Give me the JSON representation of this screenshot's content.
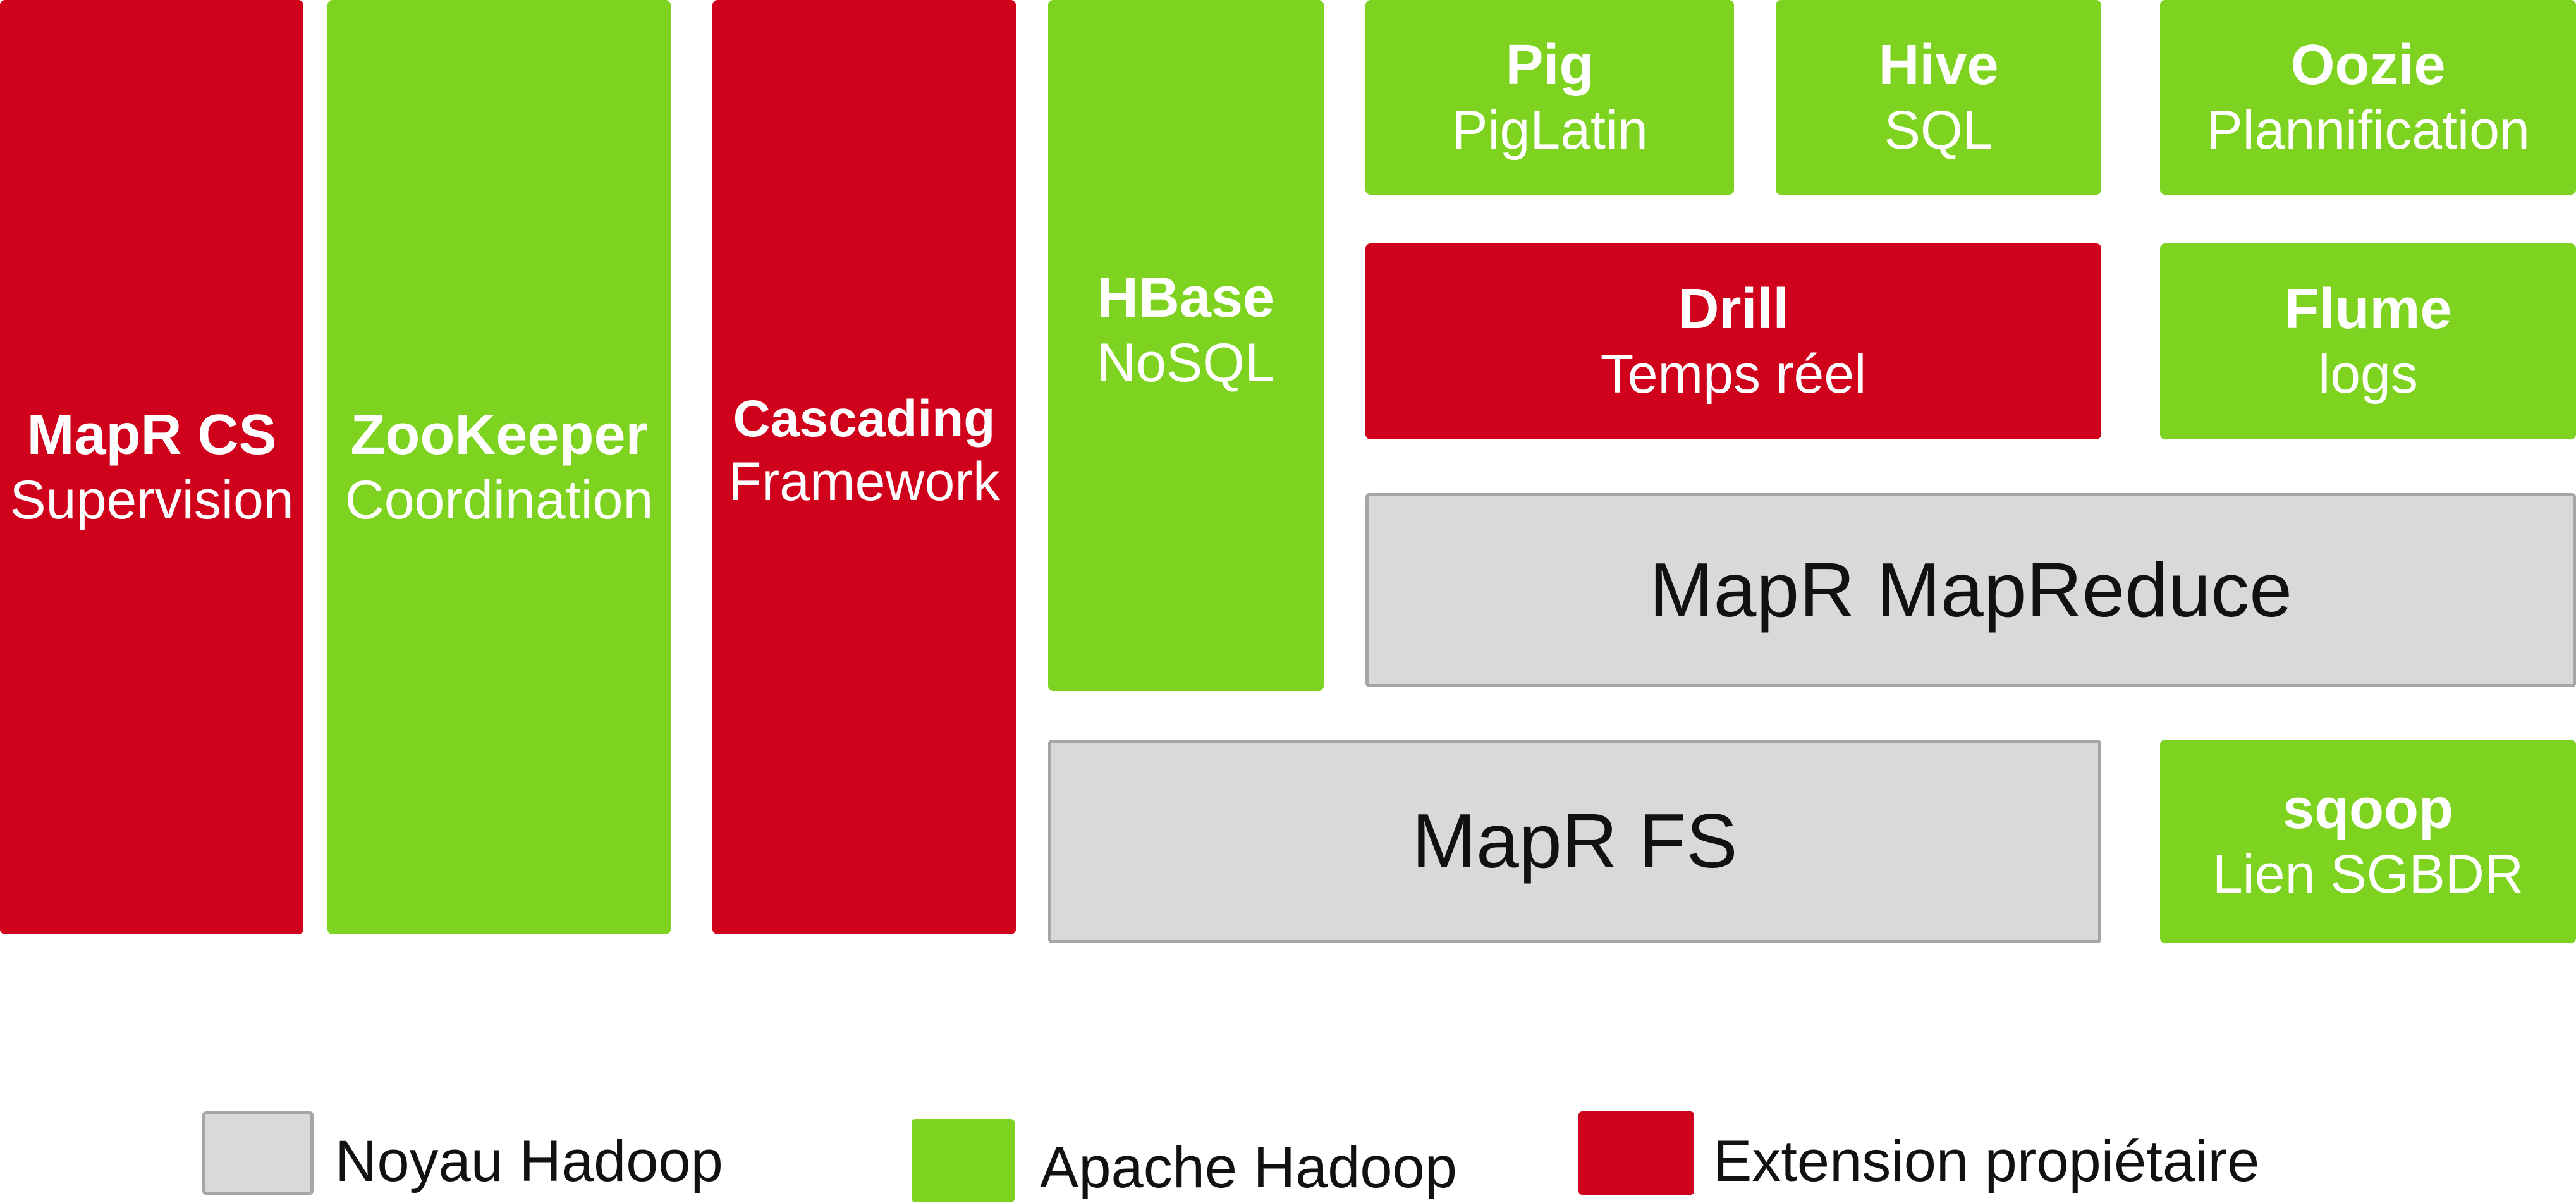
{
  "colors": {
    "noyau": "#d9d9d9",
    "apache": "#7ed321",
    "extension": "#d0021b"
  },
  "blocks": {
    "mapr_cs": {
      "title": "MapR CS",
      "subtitle": "Supervision",
      "category": "extension"
    },
    "zookeeper": {
      "title": "ZooKeeper",
      "subtitle": "Coordination",
      "category": "apache"
    },
    "cascading": {
      "title": "Cascading",
      "subtitle": "Framework",
      "category": "extension"
    },
    "hbase": {
      "title": "HBase",
      "subtitle": "NoSQL",
      "category": "apache"
    },
    "pig": {
      "title": "Pig",
      "subtitle": "PigLatin",
      "category": "apache"
    },
    "hive": {
      "title": "Hive",
      "subtitle": "SQL",
      "category": "apache"
    },
    "oozie": {
      "title": "Oozie",
      "subtitle": "Plannification",
      "category": "apache"
    },
    "drill": {
      "title": "Drill",
      "subtitle": "Temps réel",
      "category": "extension"
    },
    "flume": {
      "title": "Flume",
      "subtitle": "logs",
      "category": "apache"
    },
    "mapreduce": {
      "title": "MapR MapReduce",
      "category": "noyau"
    },
    "mapr_fs": {
      "title": "MapR FS",
      "category": "noyau"
    },
    "sqoop": {
      "title": "sqoop",
      "subtitle": "Lien SGBDR",
      "category": "apache"
    }
  },
  "legend": {
    "noyau": "Noyau Hadoop",
    "apache": "Apache Hadoop",
    "extension": "Extension propiétaire"
  }
}
